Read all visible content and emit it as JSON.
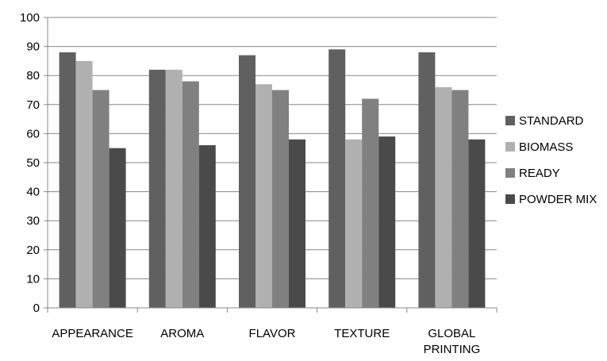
{
  "chart_data": {
    "type": "bar",
    "title": "",
    "xlabel": "",
    "ylabel": "",
    "ylim": [
      0,
      100
    ],
    "yticks": [
      0,
      10,
      20,
      30,
      40,
      50,
      60,
      70,
      80,
      90,
      100
    ],
    "grid": true,
    "legend_position": "right",
    "categories": [
      [
        "APPEARANCE"
      ],
      [
        "AROMA"
      ],
      [
        "FLAVOR"
      ],
      [
        "TEXTURE"
      ],
      [
        "GLOBAL",
        "PRINTING"
      ]
    ],
    "series": [
      {
        "name": "STANDARD",
        "color": "#606060",
        "values": [
          88,
          82,
          87,
          89,
          88
        ]
      },
      {
        "name": "BIOMASS",
        "color": "#b0b0b0",
        "values": [
          85,
          82,
          77,
          58,
          76
        ]
      },
      {
        "name": "READY",
        "color": "#808080",
        "values": [
          75,
          78,
          75,
          72,
          75
        ]
      },
      {
        "name": "POWDER MIX",
        "color": "#4a4a4a",
        "values": [
          55,
          56,
          58,
          59,
          58
        ]
      }
    ]
  }
}
